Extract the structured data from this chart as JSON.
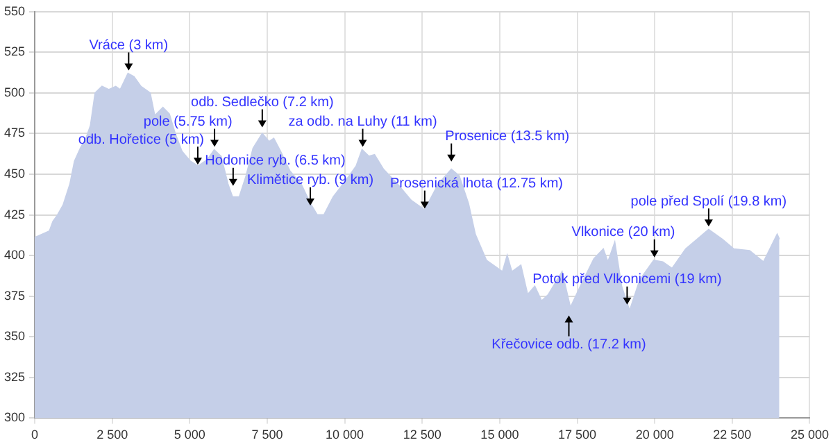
{
  "chart_data": {
    "type": "area",
    "x": [
      0,
      474,
      590,
      740,
      917,
      1138,
      1285,
      1475,
      1652,
      1800,
      1950,
      2170,
      2390,
      2613,
      2760,
      3010,
      3200,
      3425,
      3720,
      3870,
      4135,
      4340,
      4530,
      4750,
      5020,
      5270,
      5570,
      5790,
      6010,
      6230,
      6380,
      6600,
      6820,
      7045,
      7340,
      7560,
      7710,
      7930,
      8230,
      8590,
      8890,
      9110,
      9330,
      9630,
      10070,
      10370,
      10560,
      10780,
      10960,
      11250,
      11700,
      12140,
      12580,
      13020,
      13440,
      13690,
      13990,
      14210,
      14570,
      14870,
      15090,
      15240,
      15390,
      15680,
      15900,
      16130,
      16350,
      16570,
      17010,
      17280,
      17600,
      18040,
      18340,
      18490,
      18710,
      18930,
      19190,
      19520,
      19970,
      20260,
      20560,
      21000,
      21370,
      21740,
      22180,
      22550,
      23060,
      23510,
      23950,
      24020
    ],
    "values": [
      411,
      415,
      421,
      425,
      431,
      444,
      458,
      466,
      472,
      480,
      500,
      504,
      502,
      504,
      502,
      512,
      510,
      504,
      500,
      486,
      491,
      487,
      475,
      464,
      458,
      455,
      459,
      465,
      461,
      444,
      436,
      436,
      449,
      466,
      475,
      470,
      472,
      464,
      452,
      444,
      432,
      425,
      425,
      436,
      447,
      455,
      465,
      461,
      462,
      453,
      444,
      434,
      428,
      444,
      453,
      449,
      432,
      413,
      397,
      393,
      390,
      400,
      390,
      394,
      376,
      381,
      372,
      376,
      390,
      368,
      381,
      398,
      404,
      396,
      408,
      381,
      366,
      385,
      397,
      396,
      392,
      404,
      410,
      416,
      410,
      404,
      403,
      396,
      413,
      410
    ],
    "color": "#c5cfe8",
    "xlim": [
      0,
      25000
    ],
    "xticks": [
      0,
      {
        "value": 2500,
        "label": "2 500"
      },
      {
        "value": 5000,
        "label": "5 000"
      },
      {
        "value": 7500,
        "label": "7 500"
      },
      {
        "value": 10000,
        "label": "10 000"
      },
      {
        "value": 12500,
        "label": "12 500"
      },
      {
        "value": 15000,
        "label": "15 000"
      },
      {
        "value": 17500,
        "label": "17 500"
      },
      {
        "value": 20000,
        "label": "20 000"
      },
      {
        "value": 22500,
        "label": "22 500"
      },
      {
        "value": 25000,
        "label": "25 000"
      }
    ],
    "ylim": [
      300,
      550
    ],
    "yticks": [
      300,
      325,
      350,
      375,
      400,
      425,
      450,
      475,
      500,
      525,
      550
    ],
    "grid": true,
    "annotations": [
      {
        "text": "Vráce (3 km)",
        "x": 3030,
        "y": 513
      },
      {
        "text": "odb. Sedlečko (7.2 km)",
        "x": 7340,
        "y": 478
      },
      {
        "text": "pole (5.75 km)",
        "x": 5800,
        "y": 466
      },
      {
        "text": "odb. Hořetice (5 km)",
        "x": 5260,
        "y": 455
      },
      {
        "text": "Hodonice ryb. (6.5 km)",
        "x": 6400,
        "y": 442
      },
      {
        "text": "Klimětice ryb. (9 km)",
        "x": 8890,
        "y": 430
      },
      {
        "text": "za odb. na Luhy (11 km)",
        "x": 10580,
        "y": 466
      },
      {
        "text": "Prosenice (13.5 km)",
        "x": 13440,
        "y": 457
      },
      {
        "text": "Prosenická lhota (12.75 km)",
        "x": 12580,
        "y": 428
      },
      {
        "text": "pole před Spolí (19.8 km)",
        "x": 21740,
        "y": 417
      },
      {
        "text": "Vlkonice (20 km)",
        "x": 19990,
        "y": 398
      },
      {
        "text": "Potok před Vlkonicemi (19 km)",
        "x": 19110,
        "y": 369
      },
      {
        "text": "Křečovice odb. (17.2 km)",
        "x": 17230,
        "y": 364
      }
    ]
  }
}
